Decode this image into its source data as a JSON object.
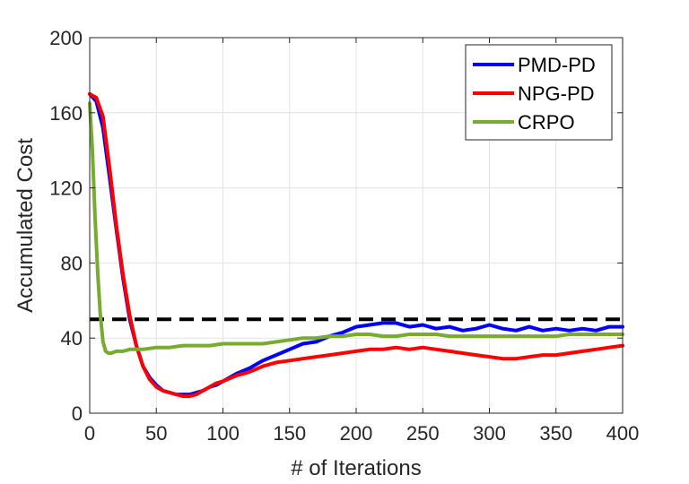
{
  "chart_data": {
    "type": "line",
    "title": "",
    "xlabel": "# of Iterations",
    "ylabel": "Accumulated Cost",
    "xlim": [
      0,
      400
    ],
    "ylim": [
      0,
      200
    ],
    "xticks": [
      0,
      50,
      100,
      150,
      200,
      250,
      300,
      350,
      400
    ],
    "yticks": [
      0,
      40,
      80,
      120,
      160,
      200
    ],
    "grid": true,
    "legend_position": "top-right",
    "threshold": {
      "value": 50,
      "style": "dashed",
      "color": "#000000"
    },
    "series": [
      {
        "name": "PMD-PD",
        "color": "#0000ff",
        "x": [
          0,
          5,
          10,
          15,
          20,
          25,
          30,
          35,
          40,
          45,
          50,
          55,
          60,
          65,
          70,
          75,
          80,
          85,
          90,
          95,
          100,
          110,
          120,
          130,
          140,
          150,
          160,
          170,
          180,
          190,
          200,
          210,
          220,
          230,
          240,
          250,
          260,
          270,
          280,
          290,
          300,
          310,
          320,
          330,
          340,
          350,
          360,
          370,
          380,
          390,
          400
        ],
        "y": [
          170,
          166,
          152,
          125,
          98,
          72,
          50,
          36,
          25,
          19,
          15,
          12,
          11,
          10,
          10,
          10,
          11,
          12,
          14,
          15,
          17,
          21,
          24,
          28,
          31,
          34,
          37,
          38,
          41,
          43,
          46,
          47,
          48,
          48,
          46,
          47,
          45,
          46,
          44,
          45,
          47,
          45,
          44,
          46,
          44,
          45,
          44,
          45,
          44,
          46,
          46
        ]
      },
      {
        "name": "NPG-PD",
        "color": "#ff0000",
        "x": [
          0,
          5,
          10,
          15,
          20,
          25,
          30,
          35,
          40,
          45,
          50,
          55,
          60,
          65,
          70,
          75,
          80,
          85,
          90,
          95,
          100,
          110,
          120,
          130,
          140,
          150,
          160,
          170,
          180,
          190,
          200,
          210,
          220,
          230,
          240,
          250,
          260,
          270,
          280,
          290,
          300,
          310,
          320,
          330,
          340,
          350,
          360,
          370,
          380,
          390,
          400
        ],
        "y": [
          170,
          168,
          158,
          130,
          100,
          74,
          52,
          36,
          25,
          18,
          14,
          12,
          11,
          10,
          9,
          9,
          10,
          12,
          14,
          16,
          17,
          20,
          22,
          25,
          27,
          28,
          29,
          30,
          31,
          32,
          33,
          34,
          34,
          35,
          34,
          35,
          34,
          33,
          32,
          31,
          30,
          29,
          29,
          30,
          31,
          31,
          32,
          33,
          34,
          35,
          36
        ]
      },
      {
        "name": "CRPO",
        "color": "#77ac30",
        "x": [
          0,
          2,
          4,
          6,
          8,
          10,
          12,
          14,
          16,
          20,
          25,
          30,
          40,
          50,
          60,
          70,
          80,
          90,
          100,
          110,
          120,
          130,
          140,
          150,
          160,
          170,
          180,
          190,
          200,
          210,
          220,
          230,
          240,
          250,
          260,
          270,
          280,
          290,
          300,
          310,
          320,
          330,
          340,
          350,
          360,
          370,
          380,
          390,
          400
        ],
        "y": [
          165,
          140,
          105,
          75,
          52,
          38,
          33,
          32,
          32,
          33,
          33,
          34,
          34,
          35,
          35,
          36,
          36,
          36,
          37,
          37,
          37,
          37,
          38,
          39,
          40,
          40,
          41,
          41,
          42,
          42,
          41,
          41,
          42,
          42,
          42,
          41,
          41,
          41,
          41,
          41,
          41,
          41,
          41,
          41,
          42,
          42,
          42,
          42,
          42
        ]
      }
    ]
  }
}
